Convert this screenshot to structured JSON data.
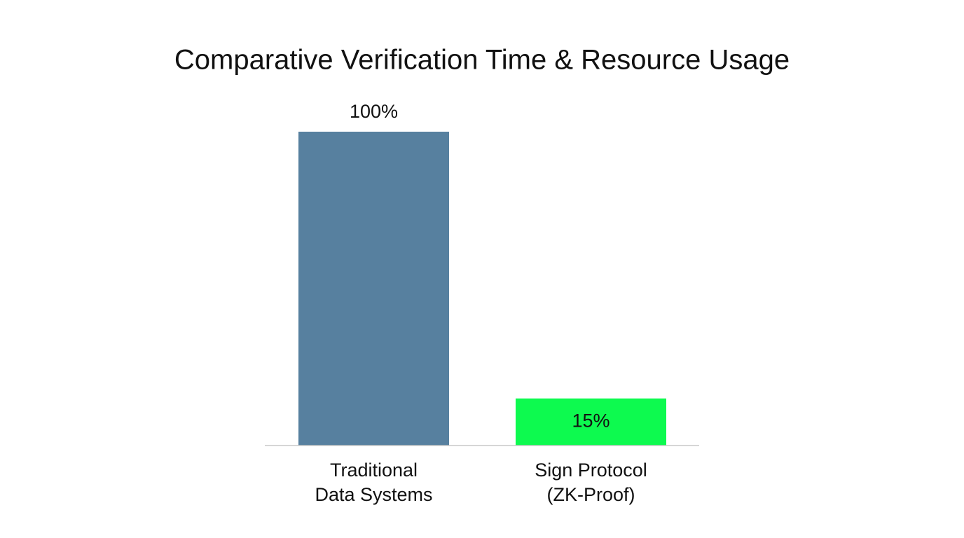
{
  "chart_data": {
    "type": "bar",
    "title": "Comparative Verification Time & Resource Usage",
    "categories": [
      [
        "Traditional",
        "Data Systems"
      ],
      [
        "Sign Protocol",
        "(ZK-Proof)"
      ]
    ],
    "values": [
      100,
      15
    ],
    "value_labels": [
      "100%",
      "15%"
    ],
    "colors": [
      "#57809f",
      "#0dfa4f"
    ]
  }
}
